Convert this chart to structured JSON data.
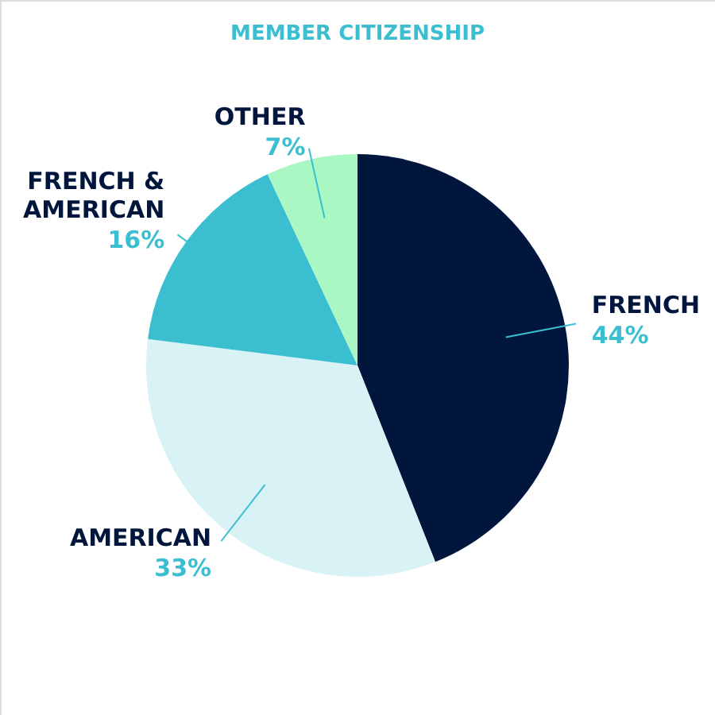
{
  "chart_data": {
    "type": "pie",
    "title": "MEMBER CITIZENSHIP",
    "categories": [
      "FRENCH",
      "AMERICAN",
      "FRENCH &\nAMERICAN",
      "OTHER"
    ],
    "values": [
      44,
      33,
      16,
      7
    ],
    "colors": [
      "#00163d",
      "#d9f2f5",
      "#3bbfd0",
      "#a9f7c3"
    ],
    "value_labels": [
      "44%",
      "33%",
      "16%",
      "7%"
    ],
    "legend": false
  }
}
